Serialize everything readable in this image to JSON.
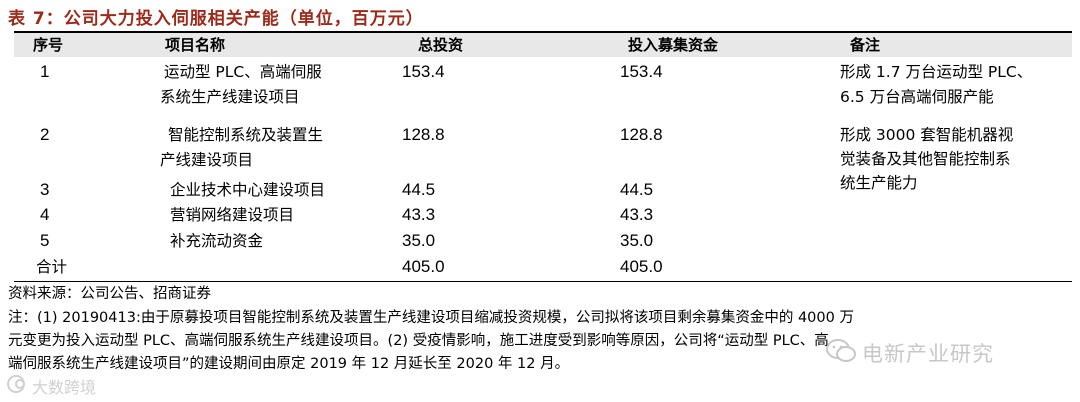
{
  "title": "表 7：公司大力投入伺服相关产能（单位，百万元）",
  "table": {
    "headers": [
      "序号",
      "项目名称",
      "总投资",
      "投入募集资金",
      "备注"
    ],
    "rows": [
      {
        "seq": "1",
        "name": [
          "运动型 PLC、高端伺服",
          "系统生产线建设项目"
        ],
        "investment": "153.4",
        "funds": "153.4",
        "note": [
          "形成 1.7 万台运动型 PLC、",
          "6.5 万台高端伺服产能"
        ]
      },
      {
        "seq": "2",
        "name": [
          "智能控制系统及装置生",
          "产线建设项目"
        ],
        "investment": "128.8",
        "funds": "128.8",
        "note": [
          "形成  3000  套智能机器视",
          "觉装备及其他智能控制系",
          "统生产能力"
        ]
      },
      {
        "seq": "3",
        "name": [
          "企业技术中心建设项目"
        ],
        "investment": "44.5",
        "funds": "44.5",
        "note": []
      },
      {
        "seq": "4",
        "name": [
          "营销网络建设项目"
        ],
        "investment": "43.3",
        "funds": "43.3",
        "note": []
      },
      {
        "seq": "5",
        "name": [
          "补充流动资金"
        ],
        "investment": "35.0",
        "funds": "35.0",
        "note": []
      }
    ],
    "total": {
      "label": "合计",
      "investment": "405.0",
      "funds": "405.0"
    }
  },
  "source": "资料来源：公司公告、招商证券",
  "footnote": [
    "注：(1) 20190413:由于原募投项目智能控制系统及装置生产线建设项目缩减投资规模，公司拟将该项目剩余募集资金中的 4000 万",
    "元变更为投入运动型 PLC、高端伺服系统生产线建设项目。(2) 受疫情影响，施工进度受到影响等原因，公司将“运动型 PLC、高",
    "端伺服系统生产线建设项目”的建设期间由原定 2019 年 12 月延长至 2020 年 12 月。"
  ],
  "watermarks": {
    "right": "电新产业研究",
    "left": "大数跨境"
  },
  "colors": {
    "title": "#9c2a1a",
    "header_bg": "#e8e8e8"
  }
}
